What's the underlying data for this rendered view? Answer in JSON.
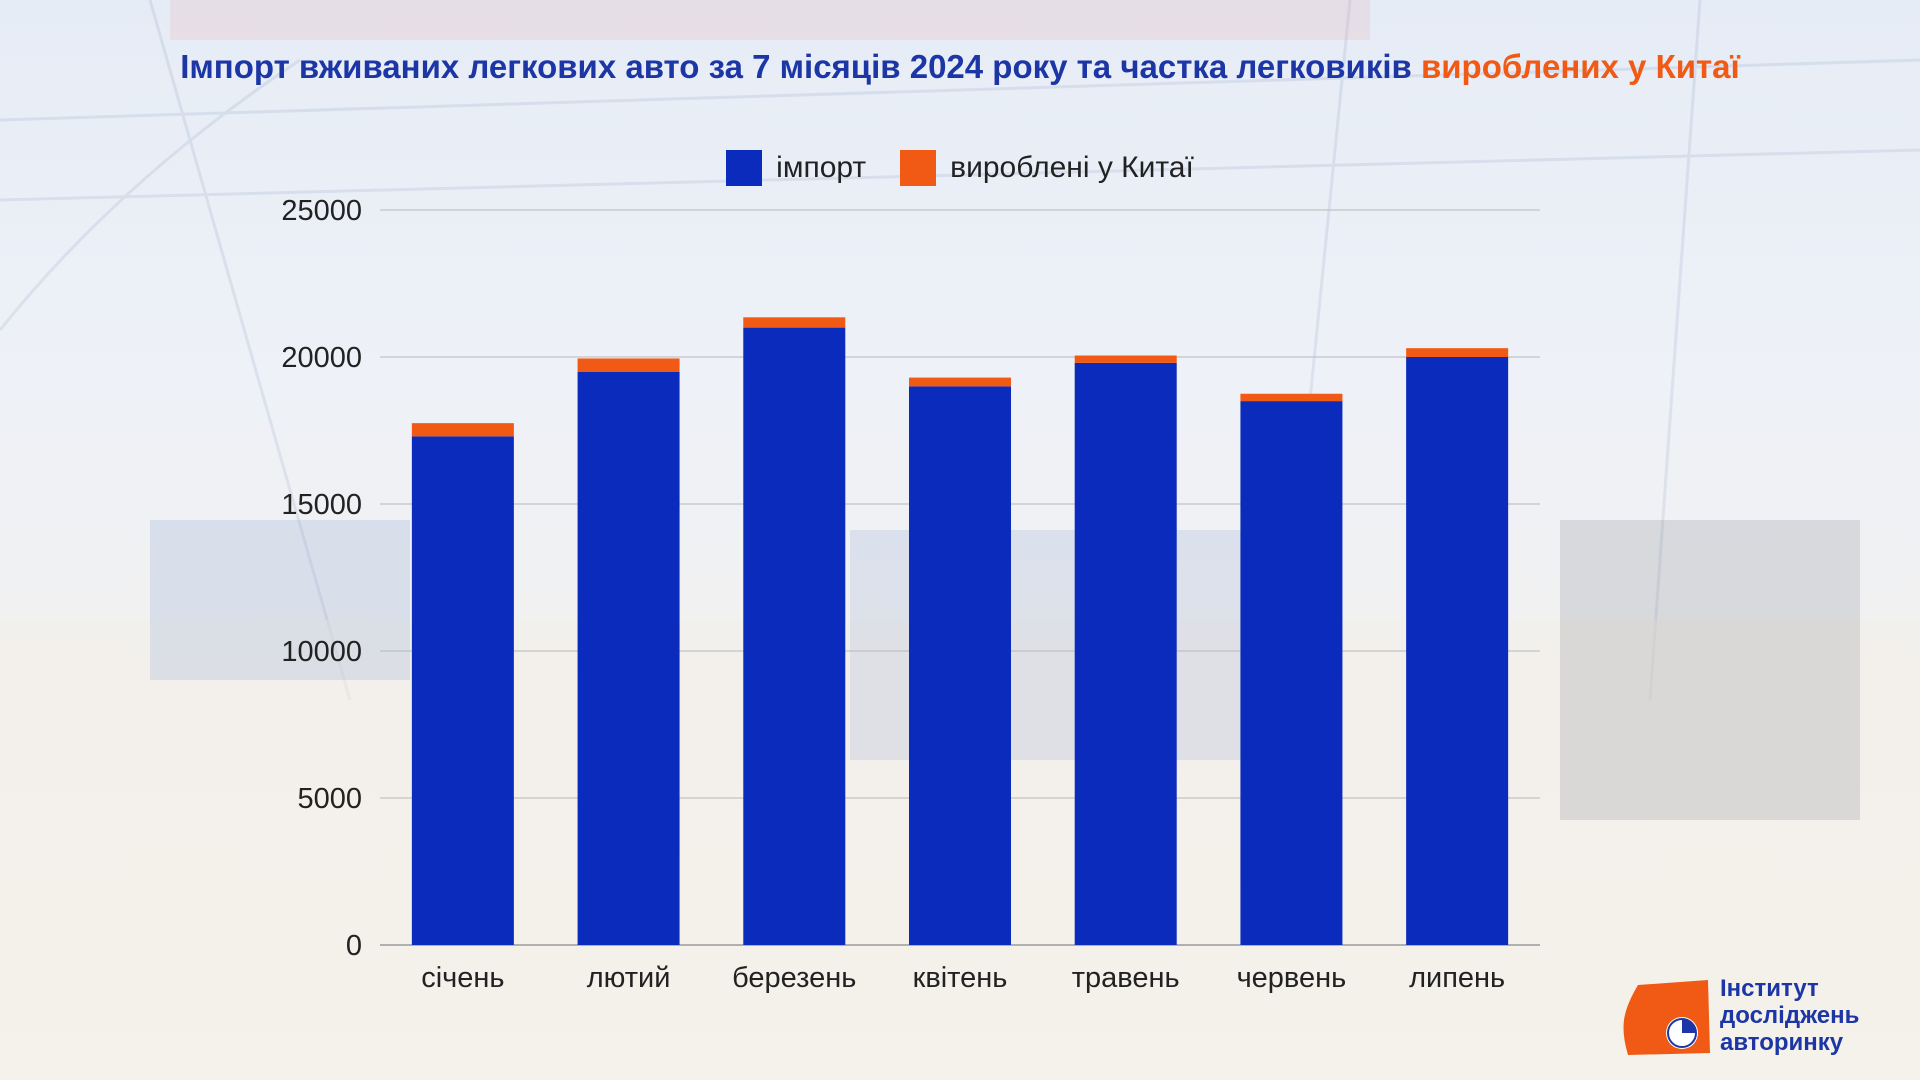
{
  "header": {
    "title_main": "Імпорт вживаних легкових авто за 7 місяців 2024 року та частка легковиків",
    "title_highlight": "вироблених у Китаї"
  },
  "legend": {
    "import_label": "імпорт",
    "china_label": "вироблені у Китаї"
  },
  "logo": {
    "line1": "Інститут",
    "line2": "досліджень",
    "line3": "авторинку"
  },
  "colors": {
    "import": "#0b2bbd",
    "china": "#f05a14",
    "title": "#1d36a6"
  },
  "chart_data": {
    "type": "bar",
    "stacked": true,
    "categories": [
      "січень",
      "лютий",
      "березень",
      "квітень",
      "травень",
      "червень",
      "липень"
    ],
    "series": [
      {
        "name": "імпорт",
        "values": [
          17300,
          19500,
          21000,
          19000,
          19800,
          18500,
          20000
        ]
      },
      {
        "name": "вироблені у Китаї",
        "values": [
          450,
          450,
          350,
          300,
          250,
          250,
          300
        ]
      }
    ],
    "yticks": [
      0,
      5000,
      10000,
      15000,
      20000,
      25000
    ],
    "ylim": [
      0,
      25000
    ],
    "grid": true,
    "legend_position": "top-center"
  }
}
